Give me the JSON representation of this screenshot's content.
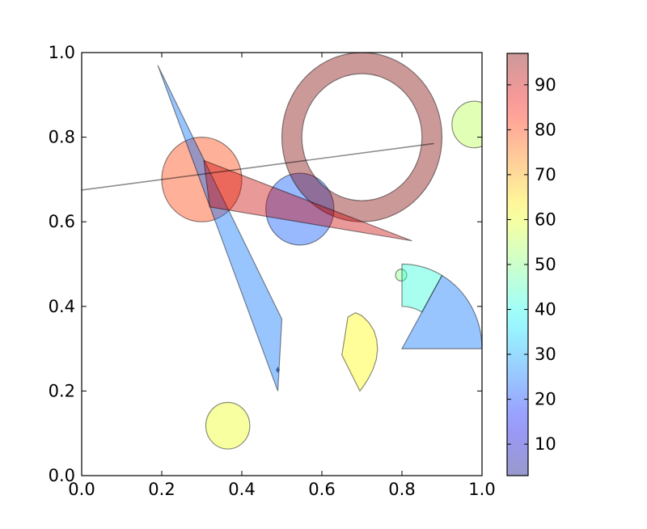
{
  "chart_data": {
    "type": "scatter",
    "title": "",
    "xlabel": "",
    "ylabel": "",
    "xlim": [
      0.0,
      1.0
    ],
    "ylim": [
      0.0,
      1.0
    ],
    "grid": false,
    "x_ticks": [
      "0.0",
      "0.2",
      "0.4",
      "0.6",
      "0.8",
      "1.0"
    ],
    "y_ticks": [
      "0.0",
      "0.2",
      "0.4",
      "0.6",
      "0.8",
      "1.0"
    ],
    "colorbar": {
      "range": [
        3,
        97
      ],
      "ticks": [
        "10",
        "20",
        "30",
        "40",
        "50",
        "60",
        "70",
        "80",
        "90"
      ],
      "tick_values": [
        10,
        20,
        30,
        40,
        50,
        60,
        70,
        80,
        90
      ],
      "colormap": "jet",
      "alpha": 0.4
    },
    "shapes": [
      {
        "type": "circle",
        "center": [
          0.3,
          0.7
        ],
        "radius": 0.1,
        "value": 80
      },
      {
        "type": "circle",
        "center": [
          0.545,
          0.63
        ],
        "radius": 0.085,
        "value": 22
      },
      {
        "type": "circle",
        "center": [
          0.98,
          0.83
        ],
        "radius": 0.055,
        "value": 55
      },
      {
        "type": "circle",
        "center": [
          0.365,
          0.118
        ],
        "radius": 0.055,
        "value": 60
      },
      {
        "type": "circle",
        "center": [
          0.798,
          0.474
        ],
        "radius": 0.014,
        "value": 50
      },
      {
        "type": "ring",
        "center": [
          0.7,
          0.8
        ],
        "outer_radius": 0.2,
        "inner_radius": 0.15,
        "value": 97
      },
      {
        "type": "polygon",
        "points": [
          [
            0.19,
            0.97
          ],
          [
            0.5,
            0.37
          ],
          [
            0.49,
            0.2
          ]
        ],
        "value": 25
      },
      {
        "type": "polygon",
        "points": [
          [
            0.305,
            0.745
          ],
          [
            0.32,
            0.635
          ],
          [
            0.825,
            0.555
          ]
        ],
        "value": 90
      },
      {
        "type": "polygon",
        "points": [
          [
            0.665,
            0.375
          ],
          [
            0.65,
            0.285
          ],
          [
            0.695,
            0.2
          ],
          [
            0.705,
            0.213
          ],
          [
            0.717,
            0.231
          ],
          [
            0.728,
            0.252
          ],
          [
            0.736,
            0.275
          ],
          [
            0.739,
            0.298
          ],
          [
            0.737,
            0.321
          ],
          [
            0.73,
            0.343
          ],
          [
            0.717,
            0.362
          ],
          [
            0.7,
            0.378
          ],
          [
            0.684,
            0.385
          ]
        ],
        "value": 62
      },
      {
        "type": "wedge",
        "center": [
          0.8,
          0.3
        ],
        "radius": 0.2,
        "theta": [
          0,
          60
        ],
        "value": 25
      },
      {
        "type": "wedge_ring",
        "center": [
          0.8,
          0.3
        ],
        "radius": 0.2,
        "width": 0.1,
        "theta": [
          60,
          90
        ],
        "value": 42
      },
      {
        "type": "line",
        "points": [
          [
            0.0,
            0.675
          ],
          [
            0.88,
            0.785
          ]
        ],
        "value": 50
      },
      {
        "type": "point",
        "point": [
          0.49,
          0.25
        ],
        "value": 20
      }
    ]
  }
}
